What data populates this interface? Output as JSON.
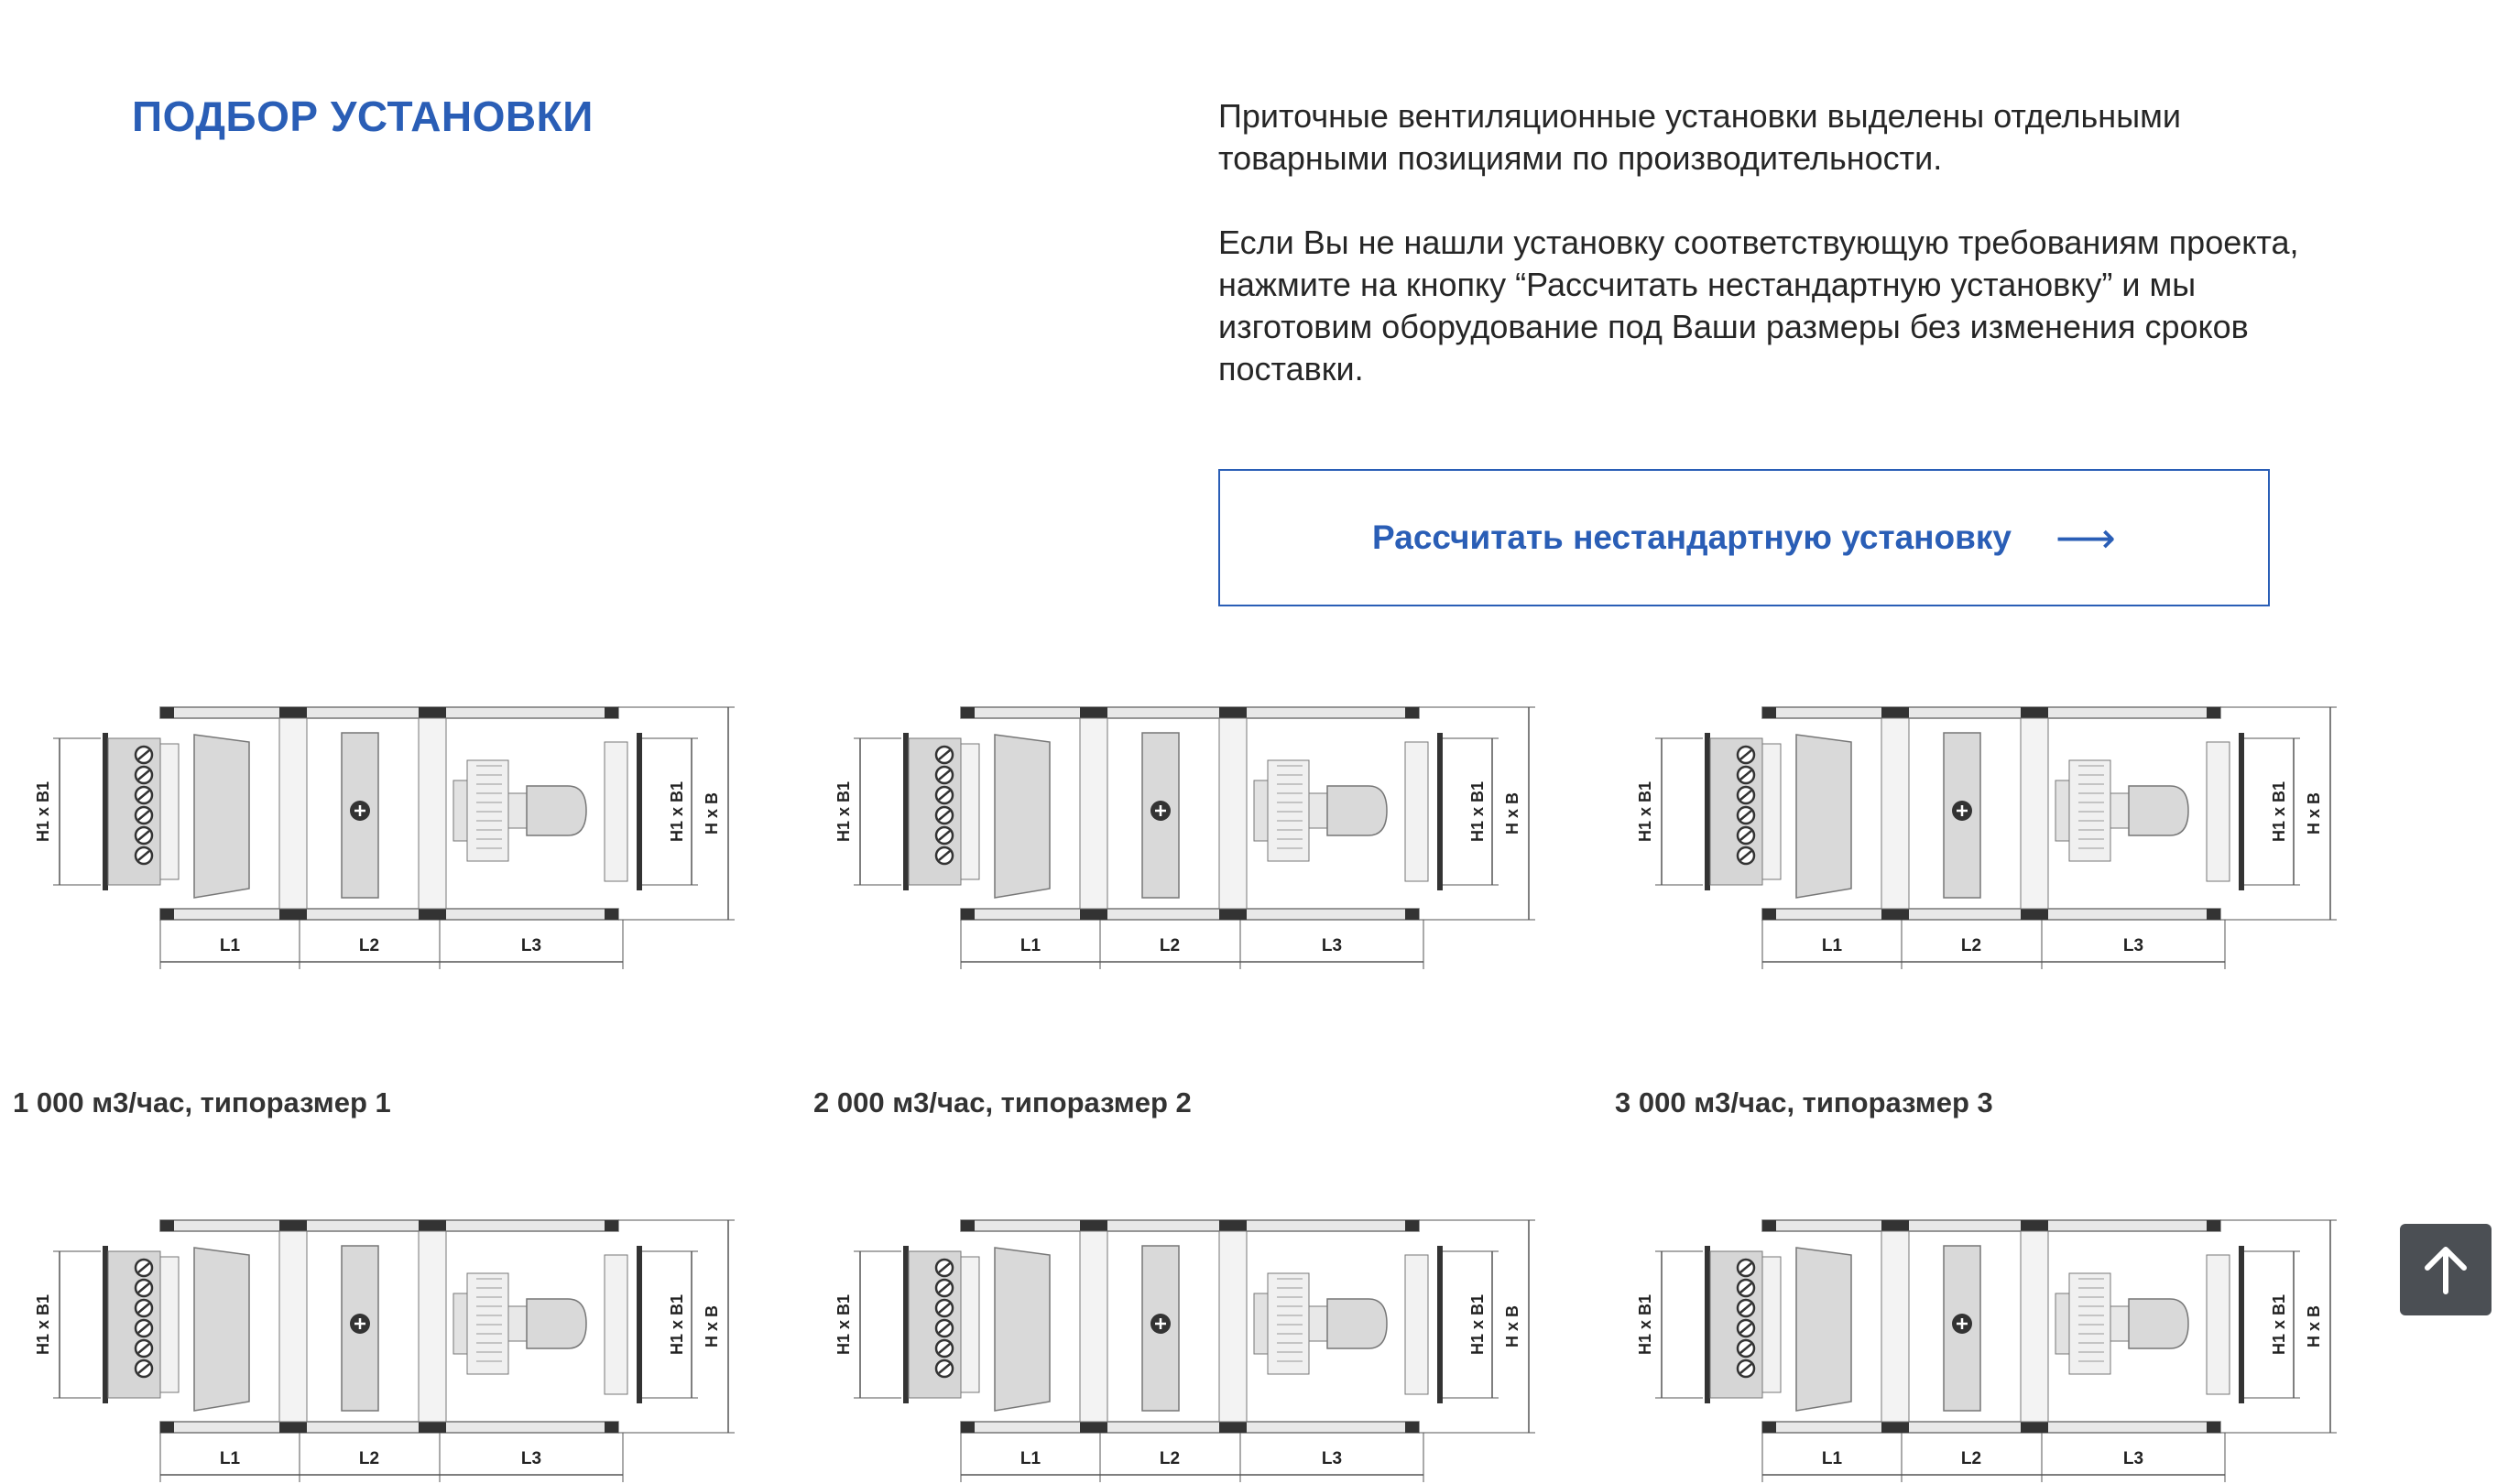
{
  "section": {
    "title": "ПОДБОР УСТАНОВКИ"
  },
  "intro": {
    "paragraph1": "Приточные вентиляционные установки выделены отдельными товарными позициями по производительности.",
    "paragraph2": "Если Вы не нашли установку соответствующую требованиям проекта, нажмите на кнопку “Рассчитать нестандартную установку” и мы изготовим оборудование под Ваши размеры без изменения сроков поставки."
  },
  "cta": {
    "label": "Рассчитать нестандартную установку",
    "arrow": "⟶"
  },
  "diagram_labels": {
    "h1b1": "H1 x B1",
    "hb": "H x B",
    "l1": "L1",
    "l2": "L2",
    "l3": "L3"
  },
  "products": [
    {
      "caption": "1 000 м3/час, типоразмер 1"
    },
    {
      "caption": "2 000 м3/час, типоразмер 2"
    },
    {
      "caption": "3 000 м3/час, типоразмер 3"
    }
  ],
  "back_to_top": {
    "icon": "arrow-up-icon"
  },
  "colors": {
    "accent": "#2a5eb6",
    "text": "#262626",
    "caption": "#333333",
    "button_dark": "#4b4f54"
  }
}
